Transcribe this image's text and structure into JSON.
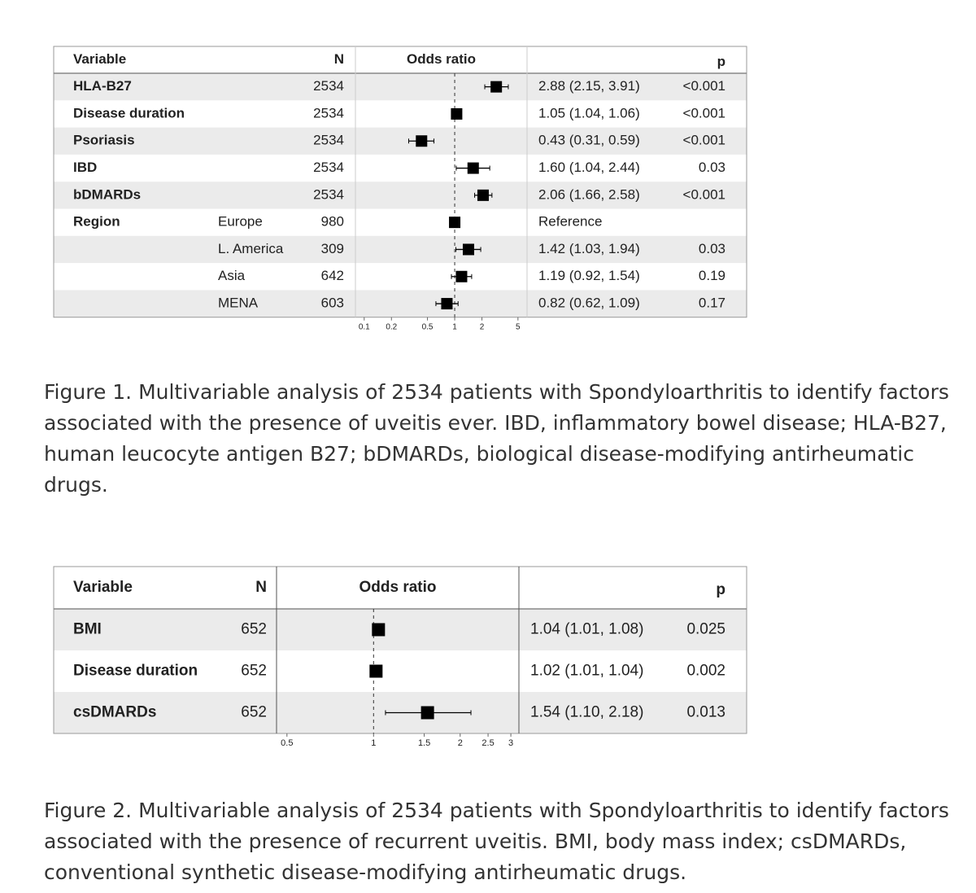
{
  "chart_data": [
    {
      "type": "forest",
      "headers": [
        "Variable",
        "N",
        "Odds ratio",
        "p"
      ],
      "variables": [
        "HLA-B27",
        "Disease duration",
        "Psoriasis",
        "IBD",
        "bDMARDs",
        "Region",
        null,
        null,
        null
      ],
      "subgroups": [
        null,
        null,
        null,
        null,
        null,
        "Europe",
        "L. America",
        "Asia",
        "MENA"
      ],
      "n": [
        2534,
        2534,
        2534,
        2534,
        2534,
        980,
        309,
        642,
        603
      ],
      "values": [
        2.88,
        1.05,
        0.43,
        1.6,
        2.06,
        1,
        1.42,
        1.19,
        0.82
      ],
      "lower": [
        2.15,
        1.04,
        0.31,
        1.04,
        1.66,
        null,
        1.03,
        0.92,
        0.62
      ],
      "upper": [
        3.91,
        1.06,
        0.59,
        2.44,
        2.58,
        null,
        1.94,
        1.54,
        1.09
      ],
      "value_labels": [
        "2.88 (2.15, 3.91)",
        "1.05 (1.04, 1.06)",
        "0.43 (0.31, 0.59)",
        "1.60 (1.04, 2.44)",
        "2.06 (1.66, 2.58)",
        "Reference",
        "1.42 (1.03, 1.94)",
        "1.19 (0.92, 1.54)",
        "0.82 (0.62, 1.09)"
      ],
      "p": [
        "<0.001",
        "<0.001",
        "<0.001",
        "0.03",
        "<0.001",
        null,
        "0.03",
        "0.19",
        "0.17"
      ],
      "log_x": true,
      "xlim": [
        0.08,
        6.3
      ],
      "xticks": [
        0.1,
        0.2,
        0.5,
        1,
        2,
        5
      ],
      "reference": 1,
      "color": "#000000",
      "caption": "Figure 1. Multivariable analysis of 2534 patients with Spondyloarthritis to identify factors associated with the presence of uveitis ever. IBD, inflammatory bowel disease; HLA-B27, human leucocyte antigen B27; bDMARDs, biological disease-modifying antirheumatic drugs."
    },
    {
      "type": "forest",
      "headers": [
        "Variable",
        "N",
        "Odds ratio",
        "p"
      ],
      "variables": [
        "BMI",
        "Disease duration",
        "csDMARDs"
      ],
      "n": [
        652,
        652,
        652
      ],
      "values": [
        1.04,
        1.02,
        1.54
      ],
      "lower": [
        1.01,
        1.01,
        1.1
      ],
      "upper": [
        1.08,
        1.04,
        2.18
      ],
      "value_labels": [
        "1.04 (1.01, 1.08)",
        "1.02 (1.01, 1.04)",
        "1.54 (1.10, 2.18)"
      ],
      "p": [
        "0.025",
        "0.002",
        "0.013"
      ],
      "log_x": true,
      "xlim": [
        0.46,
        3.2
      ],
      "xticks": [
        0.5,
        1,
        1.5,
        2,
        2.5,
        3
      ],
      "reference": 1,
      "color": "#000000",
      "caption": "Figure 2. Multivariable analysis of 2534 patients with Spondyloarthritis to identify factors associated with the presence of recurrent uveitis. BMI, body mass index; csDMARDs, conventional synthetic disease-modifying antirheumatic drugs."
    }
  ]
}
